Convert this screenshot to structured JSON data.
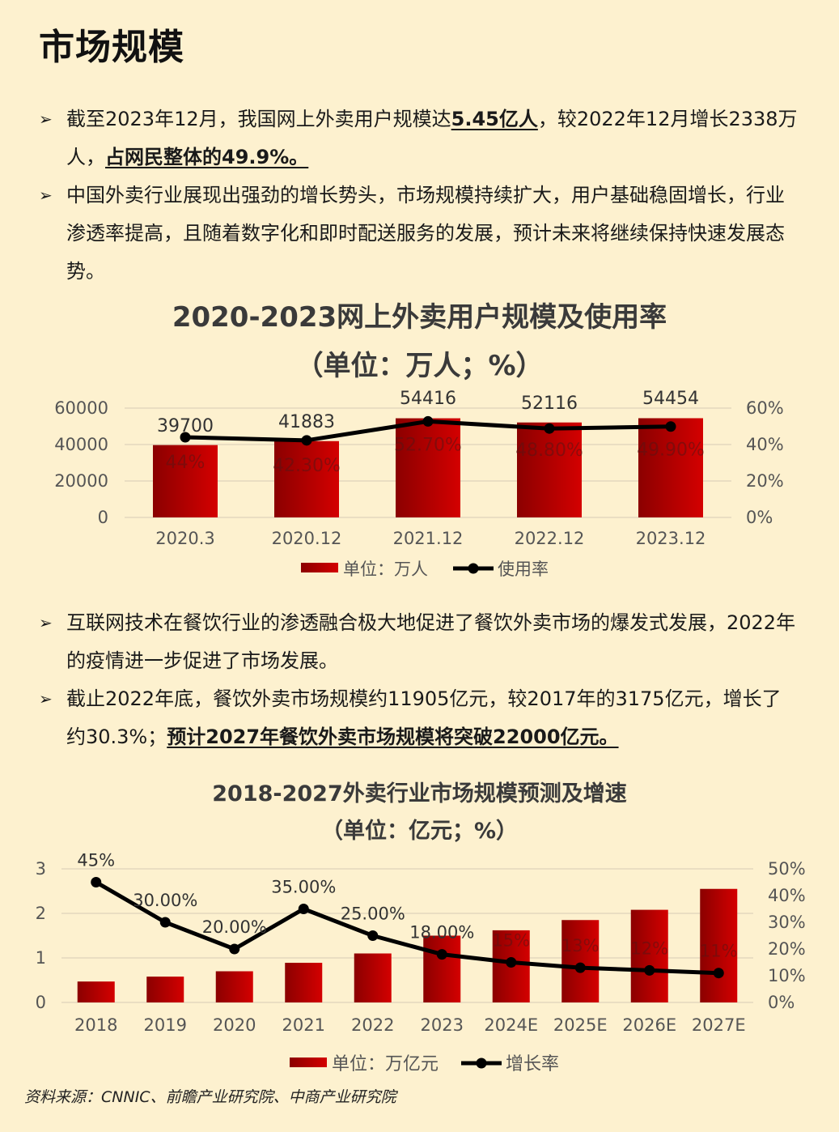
{
  "page_title": "市场规模",
  "bullets_top": [
    {
      "segments": [
        {
          "text": "截至2023年12月，我国网上外卖用户规模达",
          "hl": false
        },
        {
          "text": "5.45亿人",
          "hl": true
        },
        {
          "text": "，较2022年12月增长2338万人，",
          "hl": false
        },
        {
          "text": "占网民整体的49.9%。",
          "hl": true
        }
      ]
    },
    {
      "segments": [
        {
          "text": "中国外卖行业展现出强劲的增长势头，市场规模持续扩大，用户基础稳固增长，行业渗透率提高，且随着数字化和即时配送服务的发展，预计未来将继续保持快速发展态势。",
          "hl": false
        }
      ]
    }
  ],
  "chart1_title": {
    "line1": "2020-2023网上外卖用户规模及使用率",
    "line2": "（单位：万人；%）"
  },
  "bullets_bottom": [
    {
      "segments": [
        {
          "text": "互联网技术在餐饮行业的渗透融合极大地促进了餐饮外卖市场的爆发式发展，2022年的疫情进一步促进了市场发展。",
          "hl": false
        }
      ]
    },
    {
      "segments": [
        {
          "text": "截止2022年底，餐饮外卖市场规模约11905亿元，较2017年的3175亿元，增长了约30.3%；",
          "hl": false
        },
        {
          "text": "预计2027年餐饮外卖市场规模将突破22000亿元。",
          "hl": true
        }
      ]
    }
  ],
  "chart2_title": {
    "line1": "2018-2027外卖行业市场规模预测及增速",
    "line2": "（单位：亿元；%）"
  },
  "source": "资料来源：CNNIC、前瞻产业研究院、中商产业研究院",
  "colors": {
    "bar_dark": "#8b0000",
    "bar_light": "#d40000",
    "line": "#000000",
    "background": "#fdf1cf"
  },
  "chart_data": [
    {
      "type": "bar",
      "categories": [
        "2020.3",
        "2020.12",
        "2021.12",
        "2022.12",
        "2023.12"
      ],
      "series": [
        {
          "name": "单位：万人",
          "type": "bar",
          "axis": "left",
          "values": [
            39700,
            41883,
            54416,
            52116,
            54454
          ],
          "labels": [
            "39700",
            "41883",
            "54416",
            "52116",
            "54454"
          ]
        },
        {
          "name": "使用率",
          "type": "line",
          "axis": "right",
          "values": [
            44,
            42.3,
            52.7,
            48.8,
            49.9
          ],
          "labels": [
            "44%",
            "42.30%",
            "52.70%",
            "48.80%",
            "49.90%"
          ]
        }
      ],
      "y_left": {
        "min": 0,
        "max": 60000,
        "ticks": [
          "0",
          "20000",
          "40000",
          "60000"
        ]
      },
      "y_right": {
        "min": 0,
        "max": 60,
        "ticks": [
          "0%",
          "20%",
          "40%",
          "60%"
        ]
      },
      "grid": true,
      "legend": "bottom"
    },
    {
      "type": "bar",
      "categories": [
        "2018",
        "2019",
        "2020",
        "2021",
        "2022",
        "2023",
        "2024E",
        "2025E",
        "2026E",
        "2027E"
      ],
      "series": [
        {
          "name": "单位：万亿元",
          "type": "bar",
          "axis": "left",
          "values": [
            0.47,
            0.58,
            0.7,
            0.89,
            1.1,
            1.5,
            1.62,
            1.85,
            2.08,
            2.55
          ]
        },
        {
          "name": "增长率",
          "type": "line",
          "axis": "right",
          "values": [
            45,
            30,
            20,
            35,
            25,
            18,
            15,
            13,
            12,
            11
          ],
          "labels": [
            "45%",
            "30.00%",
            "20.00%",
            "35.00%",
            "25.00%",
            "18.00%",
            "15%",
            "13%",
            "12%",
            "11%"
          ]
        }
      ],
      "y_left": {
        "min": 0,
        "max": 3,
        "ticks": [
          "0",
          "1",
          "2",
          "3"
        ]
      },
      "y_right": {
        "min": 0,
        "max": 50,
        "ticks": [
          "0%",
          "10%",
          "20%",
          "30%",
          "40%",
          "50%"
        ]
      },
      "grid": true,
      "legend": "bottom"
    }
  ]
}
